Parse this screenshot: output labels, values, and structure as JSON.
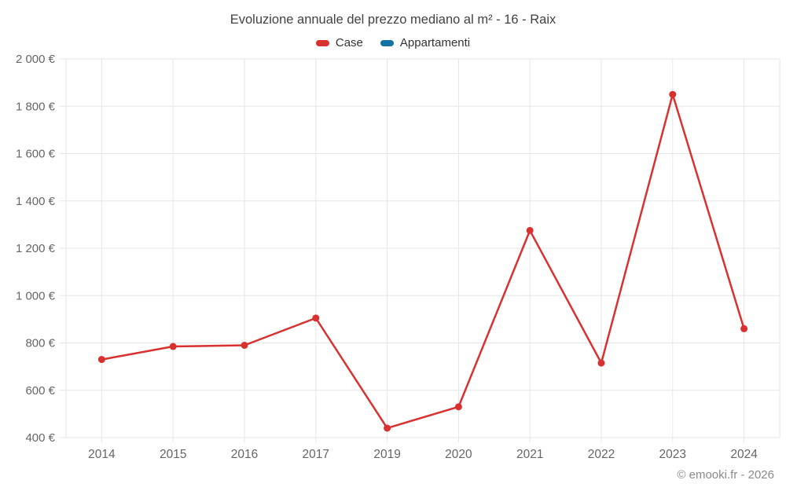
{
  "header": {
    "title": "Evoluzione annuale del prezzo mediano al m² - 16 - Raix"
  },
  "legend": {
    "items": [
      {
        "label": "Case",
        "color": "#d8312f"
      },
      {
        "label": "Appartamenti",
        "color": "#1272a3"
      }
    ]
  },
  "footer": {
    "attribution": "© emooki.fr - 2026"
  },
  "chart_data": {
    "type": "line",
    "title": "Evoluzione annuale del prezzo mediano al m² - 16 - Raix",
    "categories": [
      "2014",
      "2015",
      "2016",
      "2017",
      "2019",
      "2020",
      "2021",
      "2022",
      "2023",
      "2024"
    ],
    "series": [
      {
        "name": "Case",
        "color": "#d8312f",
        "values": [
          730,
          785,
          790,
          905,
          440,
          530,
          1275,
          715,
          1850,
          860
        ]
      },
      {
        "name": "Appartamenti",
        "color": "#1272a3",
        "values": []
      }
    ],
    "xlabel": "",
    "ylabel": "",
    "ylim": [
      400,
      2000
    ],
    "y_ticks": [
      {
        "value": 400,
        "label": "400 €"
      },
      {
        "value": 600,
        "label": "600 €"
      },
      {
        "value": 800,
        "label": "800 €"
      },
      {
        "value": 1000,
        "label": "1 000 €"
      },
      {
        "value": 1200,
        "label": "1 200 €"
      },
      {
        "value": 1400,
        "label": "1 400 €"
      },
      {
        "value": 1600,
        "label": "1 600 €"
      },
      {
        "value": 1800,
        "label": "1 800 €"
      },
      {
        "value": 2000,
        "label": "2 000 €"
      }
    ],
    "grid": true,
    "legend_position": "top",
    "currency": "€"
  }
}
